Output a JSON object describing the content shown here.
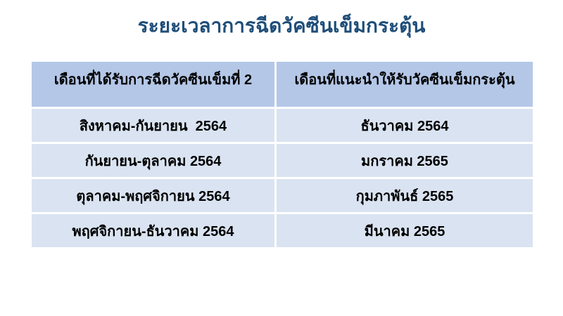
{
  "title": "ระยะเวลาการฉีดวัคซีนเข็มกระตุ้น",
  "colors": {
    "title": "#1F4E79",
    "header_bg": "#B4C7E7",
    "row_bg": "#DAE3F1",
    "divider": "#FFFFFF",
    "text": "#000000",
    "background": "#FFFFFF"
  },
  "table": {
    "columns": [
      "เดือนที่ได้รับการฉีดวัคซีนเข็มที่ 2",
      "เดือนที่แนะนำให้รับวัคซีนเข็มกระตุ้น"
    ],
    "rows": [
      [
        "สิงหาคม-กันยายน  2564",
        "ธันวาคม 2564"
      ],
      [
        "กันยายน-ตุลาคม 2564",
        "มกราคม 2565"
      ],
      [
        "ตุลาคม-พฤศจิกายน 2564",
        "กุมภาพันธ์ 2565"
      ],
      [
        "พฤศจิกายน-ธันวาคม 2564",
        "มีนาคม 2565"
      ]
    ]
  }
}
